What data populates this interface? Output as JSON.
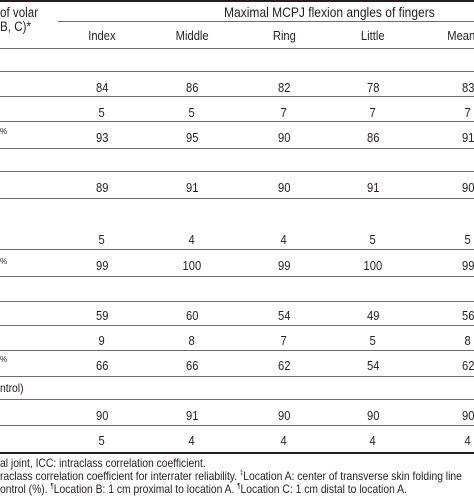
{
  "table": {
    "stub_header": {
      "line1": "of volar",
      "line2": "B, C)*"
    },
    "span_header": "Maximal MCPJ flexion angles of fingers",
    "columns": [
      "Index",
      "Middle",
      "Ring",
      "Little",
      "Mean"
    ],
    "section_label_4": "ntrol)",
    "rows": [
      {
        "stub": "",
        "values": [
          "84",
          "86",
          "82",
          "78",
          "83"
        ]
      },
      {
        "stub": "",
        "values": [
          "5",
          "5",
          "7",
          "7",
          "7"
        ]
      },
      {
        "stub": "%",
        "values": [
          "93",
          "95",
          "90",
          "86",
          "91"
        ]
      },
      {
        "stub": "",
        "values": [
          "89",
          "91",
          "90",
          "91",
          "90"
        ]
      },
      {
        "stub": "",
        "values": [
          "5",
          "4",
          "4",
          "5",
          "5"
        ]
      },
      {
        "stub": "%",
        "values": [
          "99",
          "100",
          "99",
          "100",
          "99"
        ]
      },
      {
        "stub": "",
        "values": [
          "59",
          "60",
          "54",
          "49",
          "56"
        ]
      },
      {
        "stub": "",
        "values": [
          "9",
          "8",
          "7",
          "5",
          "8"
        ]
      },
      {
        "stub": "%",
        "values": [
          "66",
          "66",
          "62",
          "54",
          "62"
        ]
      },
      {
        "stub": "",
        "values": [
          "90",
          "91",
          "90",
          "90",
          "90"
        ]
      },
      {
        "stub": "",
        "values": [
          "5",
          "4",
          "4",
          "4",
          "4"
        ]
      }
    ]
  },
  "footnotes": {
    "line1": "al joint, ICC: intraclass correlation coefficient.",
    "line2_part1": "raclass correlation coefficient for interrater reliability. ",
    "line2_mark": "‡",
    "line2_part2": "Location A: center of transverse skin folding line",
    "line3_part1": "ontrol (%). ",
    "line3_mark1": "¶",
    "line3_part2": "Location B: 1 cm proximal to location A. ",
    "line3_mark2": "¶",
    "line3_part3": "Location C: 1 cm distal to location A."
  }
}
